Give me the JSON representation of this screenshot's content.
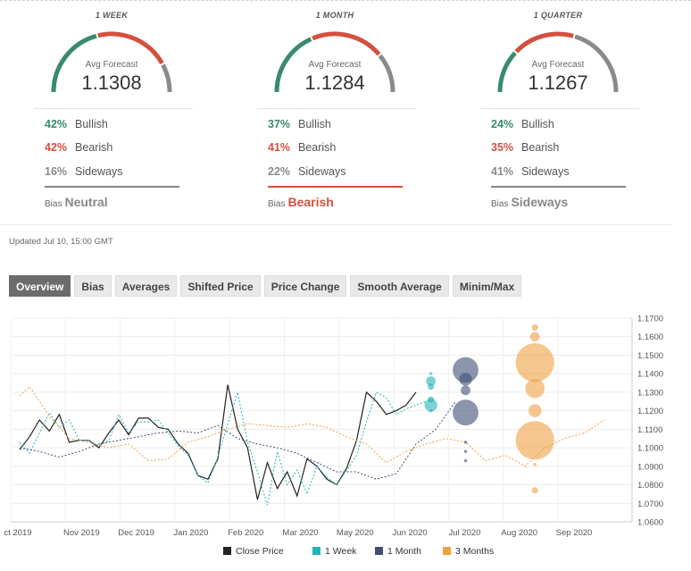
{
  "periods": [
    {
      "title": "1 WEEK",
      "avg_label": "Avg Forecast",
      "avg_value": "1.1308",
      "bullish_pct": "42%",
      "bullish_label": "Bullish",
      "bearish_pct": "42%",
      "bearish_label": "Bearish",
      "sideways_pct": "16%",
      "sideways_label": "Sideways",
      "bias_label": "Bias",
      "bias_value": "Neutral",
      "bias_color": "#888888",
      "gauge": {
        "bullish": 0.42,
        "bearish": 0.42,
        "sideways": 0.16
      }
    },
    {
      "title": "1 MONTH",
      "avg_label": "Avg Forecast",
      "avg_value": "1.1284",
      "bullish_pct": "37%",
      "bullish_label": "Bullish",
      "bearish_pct": "41%",
      "bearish_label": "Bearish",
      "sideways_pct": "22%",
      "sideways_label": "Sideways",
      "bias_label": "Bias",
      "bias_value": "Bearish",
      "bias_color": "#d4503e",
      "gauge": {
        "bullish": 0.37,
        "bearish": 0.41,
        "sideways": 0.22
      }
    },
    {
      "title": "1 QUARTER",
      "avg_label": "Avg Forecast",
      "avg_value": "1.1267",
      "bullish_pct": "24%",
      "bullish_label": "Bullish",
      "bearish_pct": "35%",
      "bearish_label": "Bearish",
      "sideways_pct": "41%",
      "sideways_label": "Sideways",
      "bias_label": "Bias",
      "bias_value": "Sideways",
      "bias_color": "#888888",
      "gauge": {
        "bullish": 0.24,
        "bearish": 0.35,
        "sideways": 0.41
      }
    }
  ],
  "colors": {
    "bullish": "#3a8a6e",
    "bearish": "#d4503e",
    "sideways": "#8a8a8a"
  },
  "updated": "Updated Jul 10, 15:00 GMT",
  "tabs": [
    {
      "label": "Overview",
      "active": true
    },
    {
      "label": "Bias"
    },
    {
      "label": "Averages"
    },
    {
      "label": "Shifted Price"
    },
    {
      "label": "Price Change"
    },
    {
      "label": "Smooth Average"
    },
    {
      "label": "Minim/Max"
    }
  ],
  "chart_data": {
    "type": "line",
    "x_ticks": [
      "ct 2019",
      "Nov 2019",
      "Dec 2019",
      "Jan 2020",
      "Feb 2020",
      "Mar 2020",
      "May 2020",
      "Jun 2020",
      "Jul 2020",
      "Aug 2020",
      "Sep 2020"
    ],
    "y_ticks": [
      "1.1700",
      "1.1600",
      "1.1500",
      "1.1400",
      "1.1300",
      "1.1200",
      "1.1100",
      "1.1000",
      "1.0900",
      "1.0800",
      "1.0700",
      "1.0600"
    ],
    "ylim": [
      1.06,
      1.17
    ],
    "legend": [
      {
        "name": "Close Price",
        "color": "#222222"
      },
      {
        "name": "1 Week",
        "color": "#26b3b8"
      },
      {
        "name": "1 Month",
        "color": "#3d4f74"
      },
      {
        "name": "3 Months",
        "color": "#f0a044"
      }
    ],
    "series": [
      {
        "name": "Close Price",
        "color": "#222222",
        "style": "solid",
        "values": [
          [
            0,
            1.099
          ],
          [
            1,
            1.106
          ],
          [
            2,
            1.115
          ],
          [
            3,
            1.109
          ],
          [
            4,
            1.118
          ],
          [
            5,
            1.103
          ],
          [
            6,
            1.104
          ],
          [
            7,
            1.104
          ],
          [
            8,
            1.1
          ],
          [
            9,
            1.108
          ],
          [
            10,
            1.115
          ],
          [
            11,
            1.107
          ],
          [
            12,
            1.116
          ],
          [
            13,
            1.116
          ],
          [
            14,
            1.111
          ],
          [
            15,
            1.11
          ],
          [
            16,
            1.102
          ],
          [
            17,
            1.097
          ],
          [
            18,
            1.085
          ],
          [
            19,
            1.083
          ],
          [
            20,
            1.094
          ],
          [
            21,
            1.134
          ],
          [
            22,
            1.11
          ],
          [
            23,
            1.1
          ],
          [
            24,
            1.072
          ],
          [
            25,
            1.092
          ],
          [
            26,
            1.078
          ],
          [
            27,
            1.087
          ],
          [
            28,
            1.074
          ],
          [
            29,
            1.094
          ],
          [
            30,
            1.09
          ],
          [
            31,
            1.083
          ],
          [
            32,
            1.08
          ],
          [
            33,
            1.089
          ],
          [
            34,
            1.104
          ],
          [
            35,
            1.13
          ],
          [
            36,
            1.125
          ],
          [
            37,
            1.118
          ],
          [
            38,
            1.12
          ],
          [
            39,
            1.123
          ],
          [
            40,
            1.13
          ]
        ]
      },
      {
        "name": "1 Week",
        "color": "#26b3b8",
        "style": "dotted",
        "values": [
          [
            0,
            1.103
          ],
          [
            1,
            1.097
          ],
          [
            2,
            1.108
          ],
          [
            3,
            1.119
          ],
          [
            4,
            1.111
          ],
          [
            5,
            1.115
          ],
          [
            6,
            1.104
          ],
          [
            7,
            1.104
          ],
          [
            8,
            1.101
          ],
          [
            9,
            1.104
          ],
          [
            10,
            1.118
          ],
          [
            11,
            1.108
          ],
          [
            12,
            1.114
          ],
          [
            13,
            1.114
          ],
          [
            14,
            1.115
          ],
          [
            15,
            1.108
          ],
          [
            16,
            1.101
          ],
          [
            17,
            1.096
          ],
          [
            18,
            1.085
          ],
          [
            19,
            1.081
          ],
          [
            20,
            1.095
          ],
          [
            21,
            1.113
          ],
          [
            22,
            1.13
          ],
          [
            23,
            1.103
          ],
          [
            24,
            1.087
          ],
          [
            25,
            1.069
          ],
          [
            26,
            1.098
          ],
          [
            27,
            1.08
          ],
          [
            28,
            1.088
          ],
          [
            29,
            1.075
          ],
          [
            30,
            1.09
          ],
          [
            31,
            1.084
          ],
          [
            32,
            1.08
          ],
          [
            33,
            1.088
          ],
          [
            34,
            1.096
          ],
          [
            35,
            1.114
          ],
          [
            36,
            1.13
          ],
          [
            37,
            1.127
          ],
          [
            38,
            1.118
          ],
          [
            39,
            1.121
          ],
          [
            40,
            1.123
          ],
          [
            41,
            1.125
          ]
        ]
      },
      {
        "name": "1 Month",
        "color": "#3d4f74",
        "style": "dotted",
        "values": [
          [
            0,
            1.1
          ],
          [
            2,
            1.098
          ],
          [
            4,
            1.095
          ],
          [
            6,
            1.098
          ],
          [
            8,
            1.102
          ],
          [
            10,
            1.104
          ],
          [
            12,
            1.106
          ],
          [
            14,
            1.108
          ],
          [
            16,
            1.109
          ],
          [
            18,
            1.108
          ],
          [
            20,
            1.112
          ],
          [
            22,
            1.105
          ],
          [
            24,
            1.102
          ],
          [
            26,
            1.1
          ],
          [
            28,
            1.097
          ],
          [
            30,
            1.092
          ],
          [
            32,
            1.087
          ],
          [
            34,
            1.087
          ],
          [
            36,
            1.083
          ],
          [
            38,
            1.086
          ],
          [
            40,
            1.102
          ],
          [
            42,
            1.11
          ],
          [
            44,
            1.125
          ]
        ]
      },
      {
        "name": "3 Months",
        "color": "#f0a044",
        "style": "dotted",
        "values": [
          [
            0,
            1.128
          ],
          [
            1,
            1.133
          ],
          [
            3,
            1.117
          ],
          [
            5,
            1.105
          ],
          [
            7,
            1.103
          ],
          [
            9,
            1.1
          ],
          [
            11,
            1.102
          ],
          [
            13,
            1.093
          ],
          [
            15,
            1.094
          ],
          [
            17,
            1.103
          ],
          [
            19,
            1.106
          ],
          [
            21,
            1.11
          ],
          [
            23,
            1.113
          ],
          [
            25,
            1.112
          ],
          [
            27,
            1.111
          ],
          [
            29,
            1.113
          ],
          [
            31,
            1.111
          ],
          [
            33,
            1.106
          ],
          [
            35,
            1.102
          ],
          [
            37,
            1.092
          ],
          [
            39,
            1.098
          ],
          [
            41,
            1.102
          ],
          [
            43,
            1.105
          ],
          [
            45,
            1.103
          ],
          [
            47,
            1.093
          ],
          [
            49,
            1.096
          ],
          [
            51,
            1.09
          ],
          [
            53,
            1.1
          ],
          [
            55,
            1.105
          ],
          [
            57,
            1.108
          ],
          [
            59,
            1.115
          ]
        ]
      }
    ],
    "bubbles": [
      {
        "series": "1 Week",
        "x": 41.5,
        "y": 1.14,
        "r": 1
      },
      {
        "series": "1 Week",
        "x": 41.5,
        "y": 1.136,
        "r": 3
      },
      {
        "series": "1 Week",
        "x": 41.5,
        "y": 1.133,
        "r": 2
      },
      {
        "series": "1 Week",
        "x": 41.5,
        "y": 1.126,
        "r": 2
      },
      {
        "series": "1 Week",
        "x": 41.5,
        "y": 1.123,
        "r": 4
      },
      {
        "series": "1 Week",
        "x": 41.5,
        "y": 1.12,
        "r": 1
      },
      {
        "series": "1 Month",
        "x": 45,
        "y": 1.142,
        "r": 8
      },
      {
        "series": "1 Month",
        "x": 45,
        "y": 1.137,
        "r": 4
      },
      {
        "series": "1 Month",
        "x": 45,
        "y": 1.131,
        "r": 3
      },
      {
        "series": "1 Month",
        "x": 45,
        "y": 1.119,
        "r": 8
      },
      {
        "series": "1 Month",
        "x": 45,
        "y": 1.103,
        "r": 1
      },
      {
        "series": "1 Month",
        "x": 45,
        "y": 1.098,
        "r": 1
      },
      {
        "series": "1 Month",
        "x": 45,
        "y": 1.093,
        "r": 1
      },
      {
        "series": "3 Months",
        "x": 52,
        "y": 1.165,
        "r": 2
      },
      {
        "series": "3 Months",
        "x": 52,
        "y": 1.16,
        "r": 3
      },
      {
        "series": "3 Months",
        "x": 52,
        "y": 1.146,
        "r": 12
      },
      {
        "series": "3 Months",
        "x": 52,
        "y": 1.132,
        "r": 6
      },
      {
        "series": "3 Months",
        "x": 52,
        "y": 1.12,
        "r": 4
      },
      {
        "series": "3 Months",
        "x": 52,
        "y": 1.104,
        "r": 12
      },
      {
        "series": "3 Months",
        "x": 52,
        "y": 1.091,
        "r": 1
      },
      {
        "series": "3 Months",
        "x": 52,
        "y": 1.077,
        "r": 2
      }
    ]
  }
}
